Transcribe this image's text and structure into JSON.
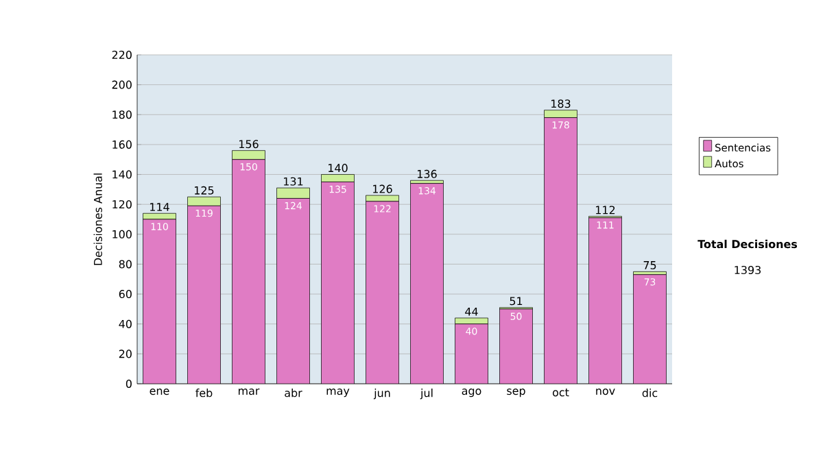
{
  "chart_data": {
    "type": "bar",
    "stacked": true,
    "ylabel": "Decisiones Anual",
    "categories": [
      "ene",
      "feb",
      "mar",
      "abr",
      "may",
      "jun",
      "jul",
      "ago",
      "sep",
      "oct",
      "nov",
      "dic"
    ],
    "series": [
      {
        "name": "Sentencias",
        "color": "#e07cc4",
        "values": [
          110,
          119,
          150,
          124,
          135,
          122,
          134,
          40,
          50,
          178,
          111,
          73
        ],
        "value_labels": [
          "110",
          "119",
          "150",
          "124",
          "135",
          "122",
          "134",
          "40",
          "50",
          "178",
          "111",
          "73"
        ]
      },
      {
        "name": "Autos",
        "color": "#ccee99",
        "values": [
          4,
          6,
          6,
          7,
          5,
          4,
          2,
          4,
          1,
          5,
          1,
          2
        ]
      }
    ],
    "totals": [
      "114",
      "125",
      "156",
      "131",
      "140",
      "126",
      "136",
      "44",
      "51",
      "183",
      "112",
      "75"
    ],
    "ylim": [
      0,
      220
    ],
    "yticks": [
      0,
      20,
      40,
      60,
      80,
      100,
      120,
      140,
      160,
      180,
      200,
      220
    ],
    "grid": "y",
    "legend": "right",
    "annotations": [
      "Total Decisiones",
      "1393"
    ]
  }
}
